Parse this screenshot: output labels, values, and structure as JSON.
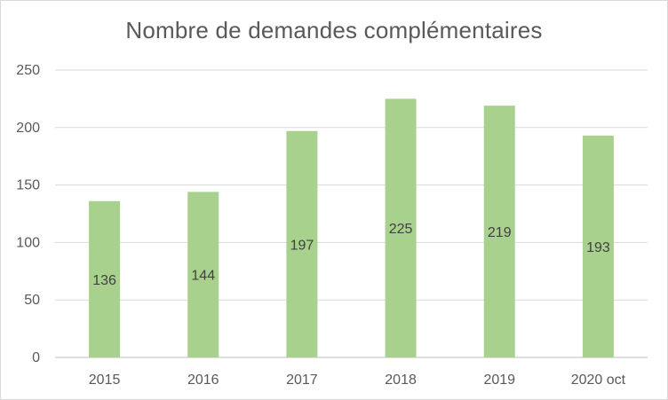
{
  "chart_data": {
    "type": "bar",
    "title": "Nombre de demandes complémentaires",
    "xlabel": "",
    "ylabel": "",
    "categories": [
      "2015",
      "2016",
      "2017",
      "2018",
      "2019",
      "2020 oct"
    ],
    "values": [
      136,
      144,
      197,
      225,
      219,
      193
    ],
    "ylim": [
      0,
      250
    ],
    "yticks": [
      0,
      50,
      100,
      150,
      200,
      250
    ],
    "grid": true,
    "legend": "none",
    "data_labels": true,
    "colors": {
      "bar": "#a9d18e",
      "grid": "#d9d9d9",
      "text": "#595959"
    }
  }
}
